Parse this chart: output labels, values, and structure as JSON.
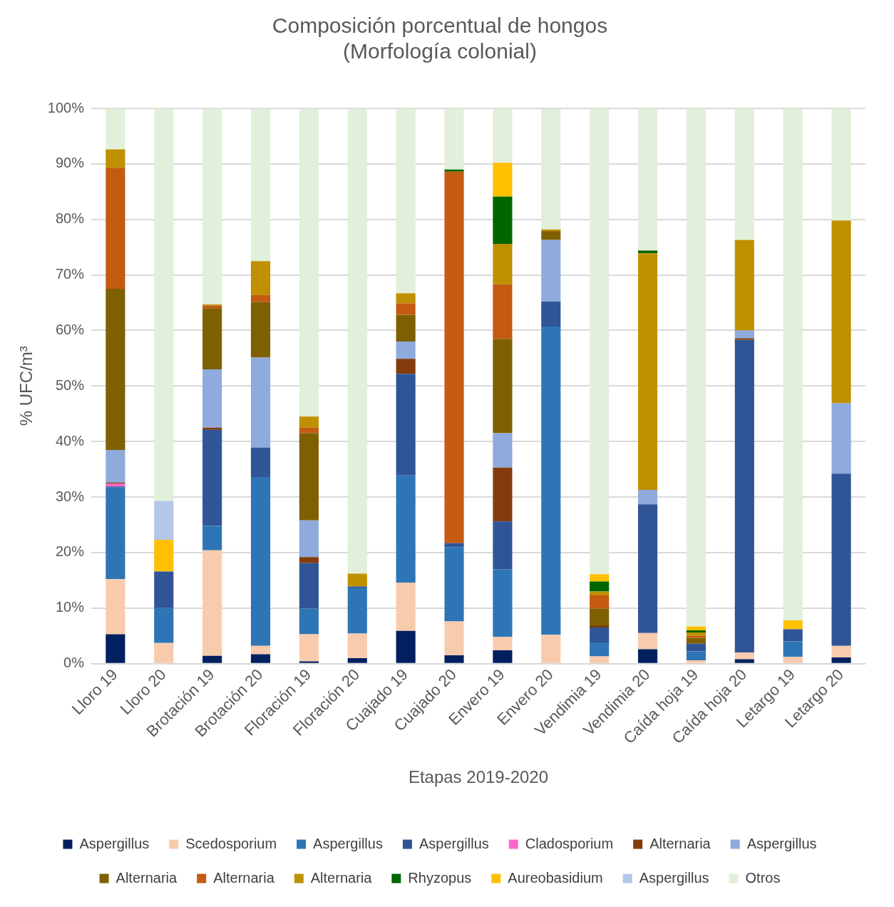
{
  "chart_data": {
    "type": "bar",
    "stacked": true,
    "title": "Composición porcentual de hongos\n(Morfología colonial)",
    "xlabel": "Etapas 2019-2020",
    "ylabel": "% UFC/m³",
    "categories": [
      "Lloro 19",
      "Lloro 20",
      "Brotación 19",
      "Brotación 20",
      "Floración 19",
      "Floración 20",
      "Cuajado 19",
      "Cuajado 20",
      "Envero 19",
      "Envero 20",
      "Vendimia 19",
      "Vendimia 20",
      "Caída hoja 19",
      "Caída hoja 20",
      "Letargo 19",
      "Letargo 20"
    ],
    "ylim": [
      0,
      100
    ],
    "yticks": [
      {
        "value": 0,
        "label": "0%"
      },
      {
        "value": 10,
        "label": "10%"
      },
      {
        "value": 20,
        "label": "20%"
      },
      {
        "value": 30,
        "label": "30%"
      },
      {
        "value": 40,
        "label": "40%"
      },
      {
        "value": 50,
        "label": "50%"
      },
      {
        "value": 60,
        "label": "60%"
      },
      {
        "value": 70,
        "label": "70%"
      },
      {
        "value": 80,
        "label": "80%"
      },
      {
        "value": 90,
        "label": "90%"
      },
      {
        "value": 100,
        "label": "100%"
      }
    ],
    "grid": "y",
    "legend": "bottom",
    "series": [
      {
        "name": "Aspergillus",
        "color": "#002060",
        "values": [
          5.3,
          0,
          1.4,
          1.7,
          0.4,
          1.0,
          5.9,
          1.5,
          2.4,
          null,
          0,
          2.6,
          0,
          0.8,
          0,
          1.1
        ]
      },
      {
        "name": "Scedosporium",
        "color": "#f8cbad",
        "values": [
          9.9,
          3.7,
          19.0,
          1.5,
          4.9,
          4.4,
          8.7,
          6.1,
          2.4,
          5.2,
          1.3,
          2.9,
          0.6,
          1.2,
          1.2,
          2.1
        ]
      },
      {
        "name": "Aspergillus",
        "color": "#2e75b6",
        "values": [
          16.5,
          6.3,
          4.4,
          30.4,
          4.6,
          8.3,
          19.3,
          13.4,
          12.2,
          55.5,
          2.5,
          0,
          1.6,
          0,
          2.8,
          0
        ]
      },
      {
        "name": "Aspergillus",
        "color": "#2f5597",
        "values": [
          0.2,
          6.6,
          17.3,
          5.3,
          8.2,
          0.2,
          18.3,
          0.7,
          8.6,
          4.5,
          2.7,
          23.2,
          1.4,
          56.3,
          2.2,
          31.0
        ]
      },
      {
        "name": "Cladosporium",
        "color": "#ff66cc",
        "values": [
          0.5,
          0,
          0,
          0,
          0,
          0,
          0,
          0,
          0,
          0,
          0,
          0,
          0,
          0,
          0,
          0
        ]
      },
      {
        "name": "Alternaria",
        "color": "#843c0c",
        "values": [
          0.2,
          0,
          0.4,
          0,
          1.1,
          0,
          2.7,
          0,
          9.7,
          0,
          0.4,
          0,
          0,
          0.3,
          0,
          0
        ]
      },
      {
        "name": "Aspergillus",
        "color": "#8faadc",
        "values": [
          5.9,
          0,
          10.5,
          16.2,
          6.6,
          0,
          3.1,
          0,
          6.2,
          11.1,
          0,
          2.6,
          0,
          1.4,
          0,
          12.7
        ]
      },
      {
        "name": "Alternaria",
        "color": "#7f6000",
        "values": [
          29.0,
          0,
          11.0,
          10.0,
          15.7,
          0,
          4.8,
          0,
          17.0,
          1.6,
          3.0,
          0,
          1.0,
          0,
          0,
          0
        ]
      },
      {
        "name": "Alternaria",
        "color": "#c55a11",
        "values": [
          21.8,
          0,
          0.5,
          1.3,
          1.0,
          0,
          2.1,
          66.9,
          9.8,
          0,
          2.4,
          0,
          0.4,
          0,
          0,
          0
        ]
      },
      {
        "name": "Alternaria",
        "color": "#bf9000",
        "values": [
          3.3,
          0,
          0.2,
          6.1,
          2.0,
          2.3,
          1.8,
          0,
          7.3,
          0.3,
          0.7,
          42.6,
          0.6,
          16.3,
          0,
          32.9
        ]
      },
      {
        "name": "Rhyzopus",
        "color": "#006600",
        "values": [
          0,
          0,
          0,
          0,
          0,
          0,
          0,
          0.4,
          8.5,
          0,
          1.8,
          0.5,
          0.4,
          0,
          0,
          0
        ]
      },
      {
        "name": "Aureobasidium",
        "color": "#ffc000",
        "values": [
          0,
          5.7,
          0,
          0,
          0,
          0,
          0,
          0,
          6.1,
          0,
          1.3,
          0,
          0.7,
          0,
          1.6,
          0
        ]
      },
      {
        "name": "Aspergillus",
        "color": "#b4c7e7",
        "values": [
          0,
          7.0,
          0,
          0,
          0,
          0,
          0,
          0,
          0,
          0,
          0,
          0,
          0,
          0,
          0,
          0
        ]
      },
      {
        "name": "Otros",
        "color": "#e2efda",
        "values": [
          7.4,
          70.7,
          35.3,
          27.5,
          55.5,
          83.8,
          33.3,
          11.0,
          9.8,
          21.7,
          83.9,
          25.6,
          93.3,
          23.7,
          92.2,
          20.2
        ]
      }
    ]
  }
}
